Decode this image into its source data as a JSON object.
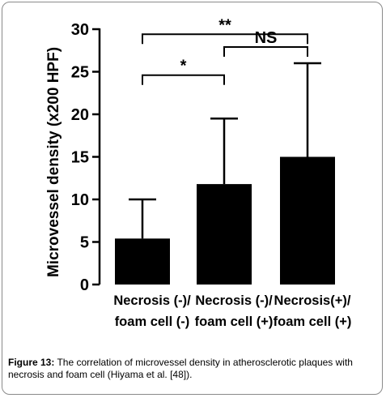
{
  "chart_data": {
    "type": "bar",
    "ylabel": "Microvessel density (x200 HPF)",
    "ylim": [
      0,
      30
    ],
    "yticks": [
      0,
      5,
      10,
      15,
      20,
      25,
      30
    ],
    "grid": false,
    "categories": [
      {
        "line1": "Necrosis (-)/",
        "line2": "foam cell (-)"
      },
      {
        "line1": "Necrosis (-)/",
        "line2": "foam cell (+)"
      },
      {
        "line1": "Necrosis(+)/",
        "line2": "foam cell (+)"
      }
    ],
    "values": [
      5.4,
      11.8,
      15.0
    ],
    "errors": [
      4.6,
      7.7,
      11.0
    ],
    "bar_color": "#000000",
    "significance": [
      {
        "from": 0,
        "to": 1,
        "label": "*"
      },
      {
        "from": 1,
        "to": 2,
        "label": "NS"
      },
      {
        "from": 0,
        "to": 2,
        "label": "**"
      }
    ]
  },
  "caption": {
    "label": "Figure 13:",
    "text": " The correlation of microvessel density in atherosclerotic plaques with necrosis and foam cell (Hiyama et al. [48])."
  }
}
